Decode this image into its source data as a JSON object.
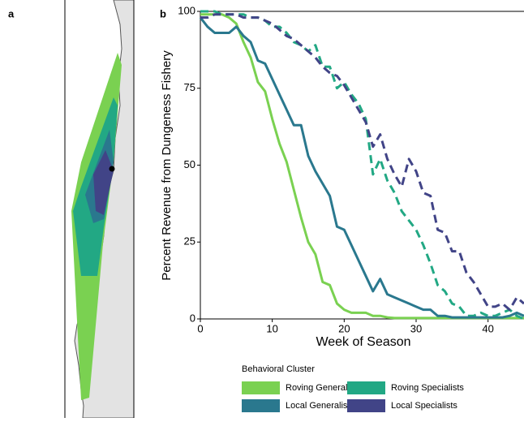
{
  "chart_data": {
    "type": "line",
    "panel_labels": [
      "a",
      "b"
    ],
    "xlabel": "Week of Season",
    "ylabel": "Percent Revenue from Dungeness Fishery",
    "legend_title": "Behavioral Cluster",
    "xlim": [
      0,
      45
    ],
    "ylim": [
      0,
      100
    ],
    "xticks": [
      0,
      10,
      20,
      30,
      40
    ],
    "yticks": [
      0,
      25,
      50,
      75,
      100
    ],
    "x": [
      0,
      1,
      2,
      3,
      4,
      5,
      6,
      7,
      8,
      9,
      10,
      11,
      12,
      13,
      14,
      15,
      16,
      17,
      18,
      19,
      20,
      21,
      22,
      23,
      24,
      25,
      26,
      27,
      28,
      29,
      30,
      31,
      32,
      33,
      34,
      35,
      36,
      37,
      38,
      39,
      40,
      41,
      42,
      43,
      44,
      45
    ],
    "series": [
      {
        "name": "Roving Generalists",
        "color": "#7ad151",
        "dash": false,
        "values": [
          99,
          99,
          99,
          99,
          98,
          96,
          90,
          85,
          77,
          74,
          65,
          57,
          51,
          42,
          33,
          25,
          21,
          12,
          11,
          5,
          3,
          2,
          2,
          2,
          1,
          1,
          0.5,
          0.3,
          0.3,
          0.3,
          0.3,
          0.3,
          0.3,
          0.3,
          0.3,
          0.3,
          0.3,
          0.3,
          0.3,
          0.3,
          0.3,
          0.3,
          0.3,
          0.3,
          0.3,
          0.3
        ]
      },
      {
        "name": "Roving Specialists",
        "color": "#22a884",
        "dash": true,
        "values": [
          100,
          100,
          100,
          99,
          99,
          99,
          99,
          98,
          98,
          97,
          95,
          95,
          93,
          90,
          89,
          87,
          89,
          82,
          82,
          75,
          77,
          73,
          70,
          65,
          47,
          52,
          45,
          41,
          35,
          32,
          29,
          24,
          18,
          11,
          9,
          5,
          4,
          1,
          1,
          2,
          1,
          1,
          2,
          3,
          1,
          0
        ]
      },
      {
        "name": "Local Generalists",
        "color": "#2a788e",
        "dash": false,
        "values": [
          98,
          95,
          93,
          93,
          93,
          95,
          92,
          90,
          84,
          83,
          78,
          73,
          68,
          63,
          63,
          53,
          48,
          44,
          40,
          30,
          29,
          24,
          19,
          14,
          9,
          13,
          8,
          7,
          6,
          5,
          4,
          3,
          3,
          1,
          1,
          0.5,
          0.5,
          0.5,
          0.5,
          0.5,
          0.5,
          0.5,
          0.5,
          1,
          2,
          1
        ]
      },
      {
        "name": "Local Specialists",
        "color": "#414487",
        "dash": true,
        "values": [
          98,
          98,
          99,
          99,
          99,
          99,
          98,
          98,
          98,
          97,
          96,
          94,
          92,
          91,
          89,
          87,
          85,
          82,
          80,
          79,
          76,
          72,
          68,
          64,
          56,
          60,
          52,
          47,
          43,
          52,
          48,
          41,
          40,
          29,
          28,
          22,
          22,
          15,
          12,
          8,
          4,
          4,
          5,
          3,
          7,
          5
        ]
      }
    ]
  }
}
